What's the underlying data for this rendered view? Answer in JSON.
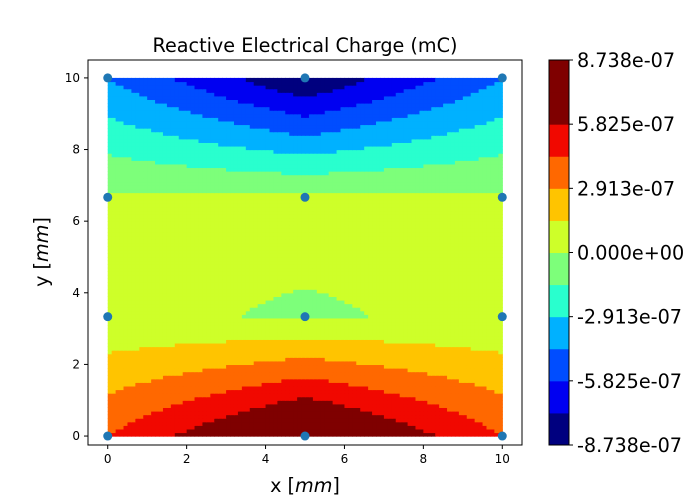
{
  "chart_data": {
    "type": "filled-contour",
    "title": "Reactive Electrical Charge (mC)",
    "xlabel": "x [mm]",
    "ylabel": "y [mm]",
    "xlim": [
      -0.5,
      10.5
    ],
    "ylim": [
      -0.25,
      10.5
    ],
    "xticks": [
      "0",
      "2",
      "4",
      "6",
      "8",
      "10"
    ],
    "yticks": [
      "0",
      "2",
      "4",
      "6",
      "8",
      "10"
    ],
    "grid_x": [
      0,
      5,
      10
    ],
    "grid_y": [
      0,
      3.3333,
      6.6667,
      10
    ],
    "z": [
      [
        4.4e-07,
        8.738e-07,
        4.4e-07
      ],
      [
        2e-08,
        -1e-08,
        2e-08
      ],
      [
        2e-08,
        3e-08,
        2e-08
      ],
      [
        -4.4e-07,
        -8.738e-07,
        -4.4e-07
      ]
    ],
    "nodes": [
      {
        "x": 0,
        "y": 0
      },
      {
        "x": 5,
        "y": 0
      },
      {
        "x": 10,
        "y": 0
      },
      {
        "x": 0,
        "y": 3.3333
      },
      {
        "x": 5,
        "y": 3.3333
      },
      {
        "x": 10,
        "y": 3.3333
      },
      {
        "x": 0,
        "y": 6.6667
      },
      {
        "x": 5,
        "y": 6.6667
      },
      {
        "x": 10,
        "y": 6.6667
      },
      {
        "x": 0,
        "y": 10
      },
      {
        "x": 5,
        "y": 10
      },
      {
        "x": 10,
        "y": 10
      }
    ],
    "levels": [
      -8.738e-07,
      -7.282e-07,
      -5.825e-07,
      -4.369e-07,
      -2.913e-07,
      -1.456e-07,
      0.0,
      1.456e-07,
      2.913e-07,
      4.369e-07,
      5.825e-07,
      7.282e-07,
      8.738e-07
    ],
    "level_colors": [
      "#00007f",
      "#0000f1",
      "#004dff",
      "#00b1ff",
      "#29ffce",
      "#7dff7a",
      "#ceff29",
      "#ffc400",
      "#ff6800",
      "#f10800",
      "#7f0000",
      "#7f0000"
    ],
    "colorbar_ticks": [
      "-8.738e-07",
      "-5.825e-07",
      "-2.913e-07",
      "0.000e+00",
      "2.913e-07",
      "5.825e-07",
      "8.738e-07"
    ],
    "colorbar_tick_values": [
      -8.738e-07,
      -5.825e-07,
      -2.913e-07,
      0.0,
      2.913e-07,
      5.825e-07,
      8.738e-07
    ],
    "colormap": "jet",
    "marker_color": "#1f77b4"
  }
}
